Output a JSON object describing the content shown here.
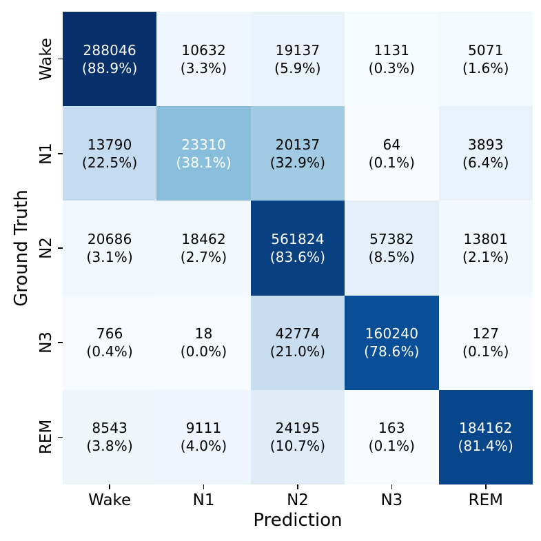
{
  "chart_data": {
    "type": "heatmap",
    "title": "",
    "xlabel": "Prediction",
    "ylabel": "Ground Truth",
    "x_ticklabels": [
      "Wake",
      "N1",
      "N2",
      "N3",
      "REM"
    ],
    "y_ticklabels": [
      "Wake",
      "N1",
      "N2",
      "N3",
      "REM"
    ],
    "colormap": "Blues",
    "normalization": {
      "vmin": 0.0,
      "vmax": 0.889
    },
    "legend": "none",
    "grid": "off",
    "counts": [
      [
        288046,
        10632,
        19137,
        1131,
        5071
      ],
      [
        13790,
        23310,
        20137,
        64,
        3893
      ],
      [
        20686,
        18462,
        561824,
        57382,
        13801
      ],
      [
        766,
        18,
        42774,
        160240,
        127
      ],
      [
        8543,
        9111,
        24195,
        163,
        184162
      ]
    ],
    "percents": [
      [
        "88.9",
        "3.3",
        "5.9",
        "0.3",
        "1.6"
      ],
      [
        "22.5",
        "38.1",
        "32.9",
        "0.1",
        "6.4"
      ],
      [
        "3.1",
        "2.7",
        "83.6",
        "8.5",
        "2.1"
      ],
      [
        "0.4",
        "0.0",
        "21.0",
        "78.6",
        "0.1"
      ],
      [
        "3.8",
        "4.0",
        "10.7",
        "0.1",
        "81.4"
      ]
    ],
    "cell_label_format": "{count} ({pct}%)",
    "colors": {
      "cell_text_on_dark": "#ffffff",
      "cell_text_on_light": "#000000",
      "tick_color": "#000000",
      "background": "#ffffff"
    },
    "white_text_threshold_pct": 35
  }
}
